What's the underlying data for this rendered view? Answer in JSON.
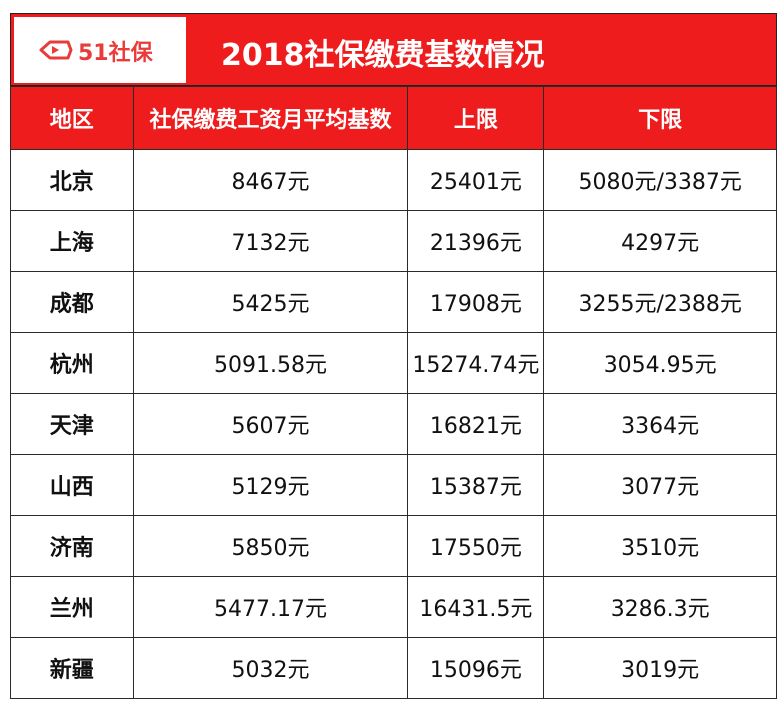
{
  "banner": {
    "logo_text": "51社保",
    "title": "2018社保缴费基数情况"
  },
  "table": {
    "headers": [
      "地区",
      "社保缴费工资月平均基数",
      "上限",
      "下限"
    ],
    "rows": [
      [
        "北京",
        "8467元",
        "25401元",
        "5080元/3387元"
      ],
      [
        "上海",
        "7132元",
        "21396元",
        "4297元"
      ],
      [
        "成都",
        "5425元",
        "17908元",
        "3255元/2388元"
      ],
      [
        "杭州",
        "5091.58元",
        "15274.74元",
        "3054.95元"
      ],
      [
        "天津",
        "5607元",
        "16821元",
        "3364元"
      ],
      [
        "山西",
        "5129元",
        "15387元",
        "3077元"
      ],
      [
        "济南",
        "5850元",
        "17550元",
        "3510元"
      ],
      [
        "兰州",
        "5477.17元",
        "16431.5元",
        "3286.3元"
      ],
      [
        "新疆",
        "5032元",
        "15096元",
        "3019元"
      ]
    ]
  },
  "colors": {
    "header_red": "#ee1c1c",
    "logo_red": "#ea3b3b"
  }
}
